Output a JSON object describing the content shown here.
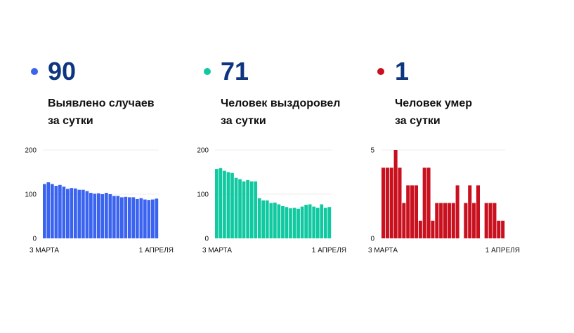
{
  "chart_data": [
    {
      "type": "bar",
      "headline": "90",
      "label_line1": "Выявлено случаев",
      "label_line2": "за сутки",
      "color": "#3a63ef",
      "ylim": [
        0,
        200
      ],
      "yticks": [
        "0",
        "100",
        "200"
      ],
      "x_start_label": "3 МАРТА",
      "x_end_label": "1 АПРЕЛЯ",
      "values": [
        123,
        127,
        123,
        119,
        121,
        117,
        112,
        114,
        113,
        110,
        110,
        107,
        103,
        101,
        102,
        100,
        103,
        100,
        96,
        96,
        93,
        94,
        93,
        93,
        89,
        91,
        88,
        87,
        88,
        90
      ]
    },
    {
      "type": "bar",
      "headline": "71",
      "label_line1": "Человек выздоровел",
      "label_line2": "за сутки",
      "color": "#11c9a0",
      "ylim": [
        0,
        200
      ],
      "yticks": [
        "0",
        "100",
        "200"
      ],
      "x_start_label": "3 МАРТА",
      "x_end_label": "1 АПРЕЛЯ",
      "values": [
        157,
        159,
        153,
        150,
        148,
        137,
        134,
        129,
        132,
        129,
        129,
        91,
        86,
        86,
        80,
        81,
        77,
        73,
        71,
        68,
        69,
        67,
        72,
        76,
        77,
        72,
        69,
        77,
        69,
        71
      ]
    },
    {
      "type": "bar",
      "headline": "1",
      "label_line1": "Человек умер",
      "label_line2": "за сутки",
      "color": "#c8101e",
      "ylim": [
        0,
        5
      ],
      "yticks": [
        "0",
        "5"
      ],
      "x_start_label": "3 МАРТА",
      "x_end_label": "1 АПРЕЛЯ",
      "values": [
        4,
        4,
        4,
        5,
        4,
        2,
        3,
        3,
        3,
        1,
        4,
        4,
        1,
        2,
        2,
        2,
        2,
        2,
        3,
        0,
        2,
        3,
        2,
        3,
        0,
        2,
        2,
        2,
        1,
        1
      ]
    }
  ]
}
